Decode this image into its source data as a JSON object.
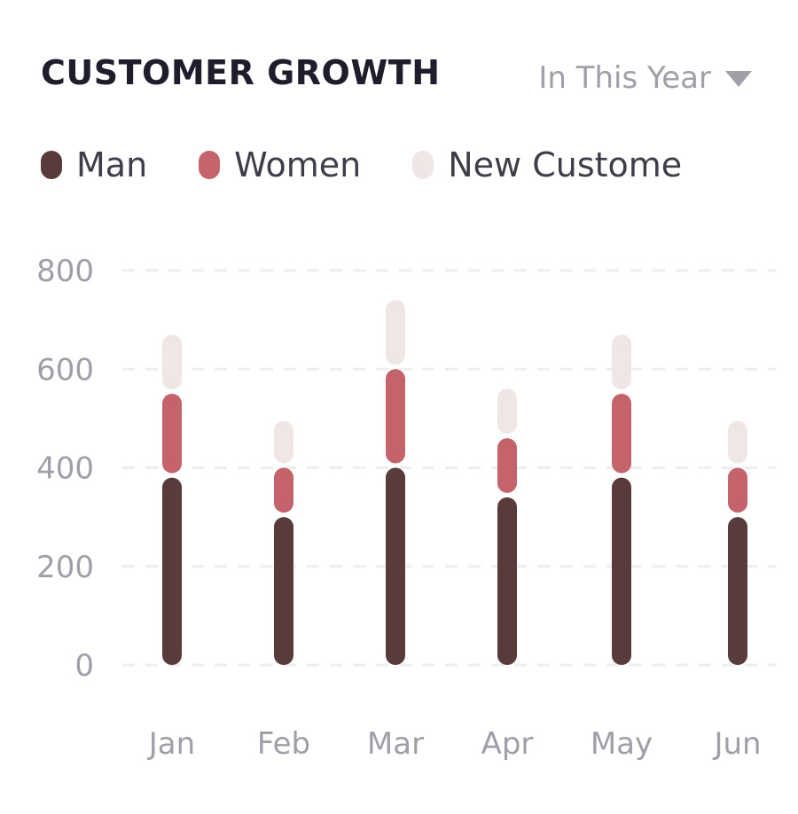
{
  "header": {
    "title": "CUSTOMER GROWTH",
    "period_label": "In This Year"
  },
  "colors": {
    "man": "#5a3b3b",
    "women": "#c4636c",
    "new_customer": "#f0e6e6",
    "grid": "#eeeeee",
    "tick": "#a09fa8"
  },
  "chart_data": {
    "type": "bar",
    "stacked": true,
    "categories": [
      "Jan",
      "Feb",
      "Mar",
      "Apr",
      "May",
      "Jun"
    ],
    "series": [
      {
        "name": "Man",
        "values": [
          380,
          300,
          400,
          340,
          380,
          300
        ]
      },
      {
        "name": "Women",
        "values": [
          170,
          100,
          200,
          120,
          170,
          100
        ]
      },
      {
        "name": "New Custome",
        "values": [
          120,
          95,
          140,
          100,
          120,
          95
        ]
      }
    ],
    "yticks": [
      "800",
      "600",
      "400",
      "200",
      "0"
    ],
    "ylim": [
      0,
      800
    ],
    "grid": true,
    "legend_position": "top-left"
  }
}
